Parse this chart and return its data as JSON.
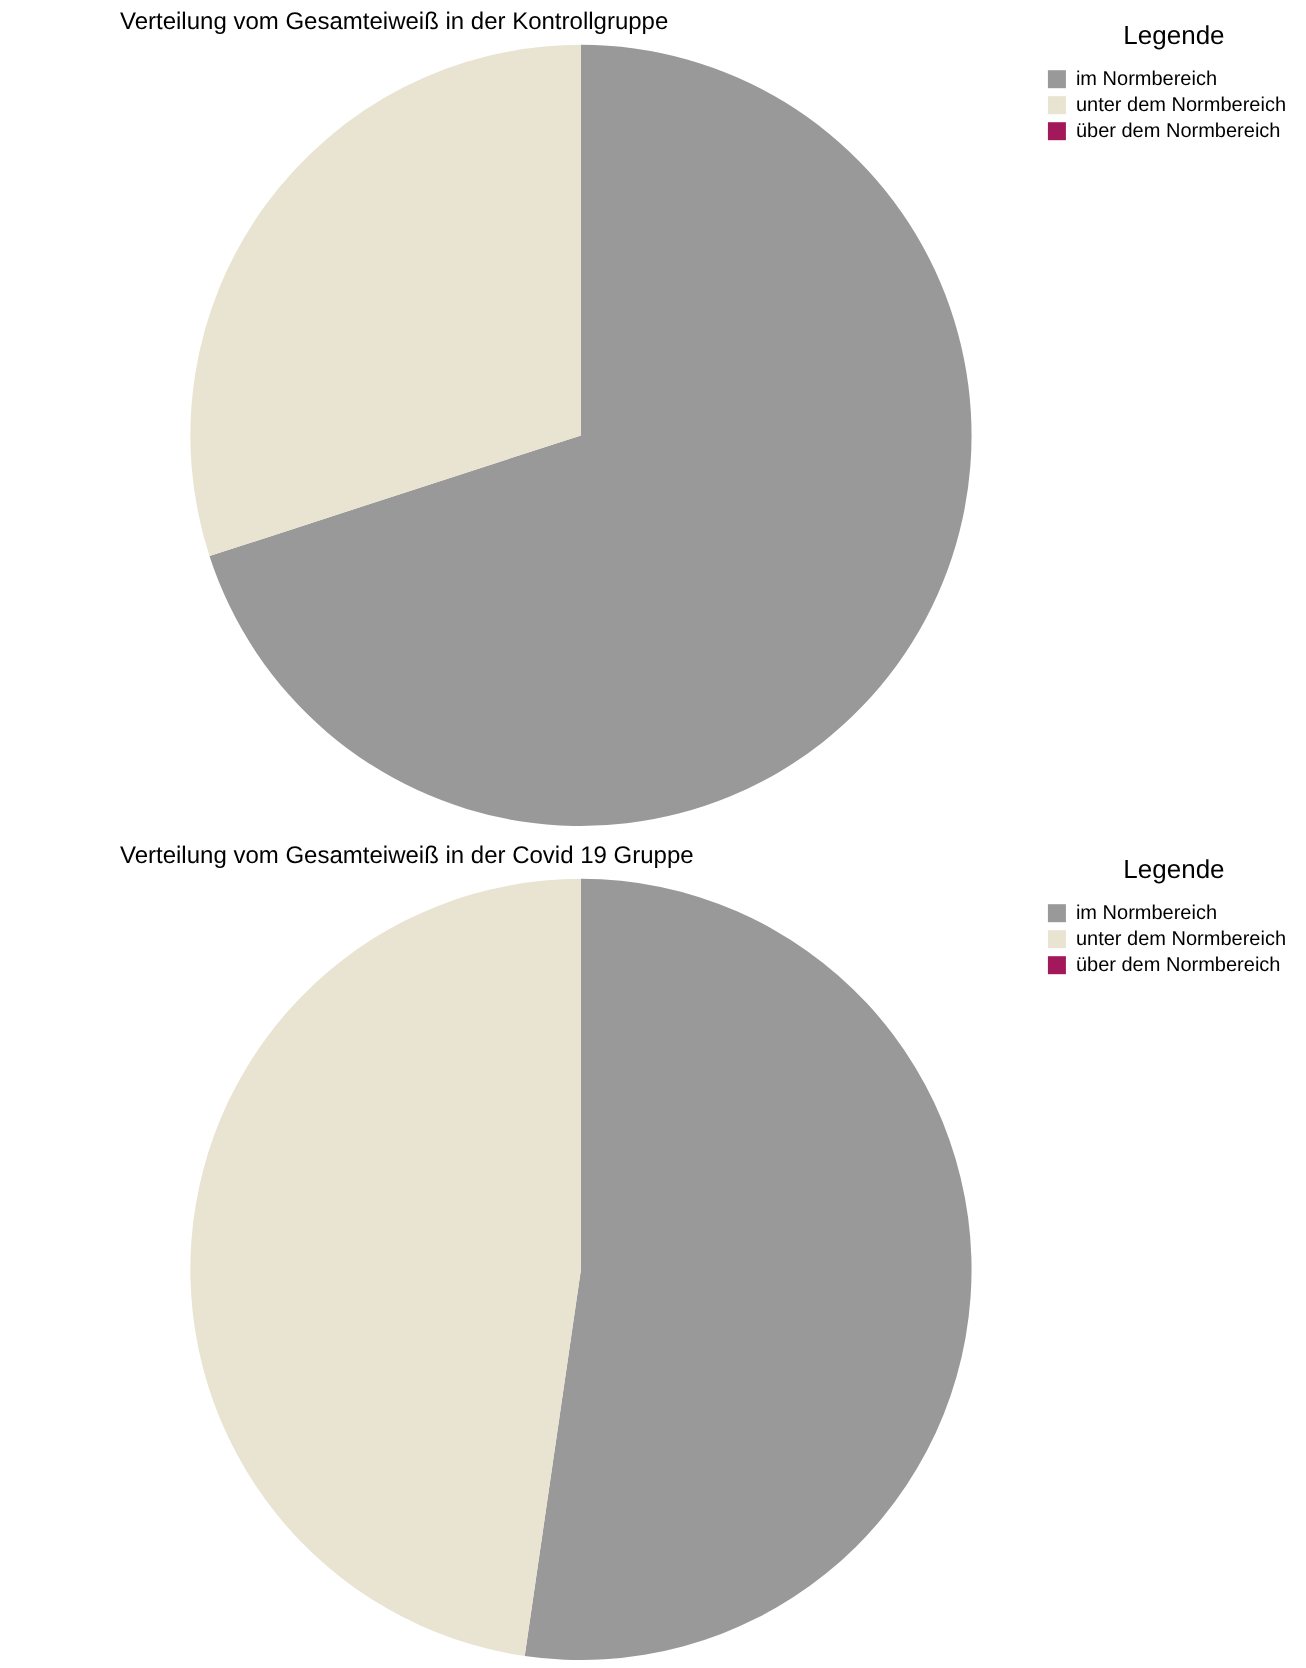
{
  "chart_data": [
    {
      "type": "pie",
      "title": "Verteilung vom Gesamteiweiß in der Kontrollgruppe",
      "legend_title": "Legende",
      "legend": "top right",
      "categories": [
        "im Normbereich",
        "unter dem Normbereich",
        "über dem Normbereich"
      ],
      "values": [
        70,
        30,
        0
      ],
      "colors": [
        "#999999",
        "#e9e3d1",
        "#a3185a"
      ]
    },
    {
      "type": "pie",
      "title": "Verteilung vom Gesamteiweiß in der Covid 19 Gruppe",
      "legend_title": "Legende",
      "legend": "top right",
      "categories": [
        "im Normbereich",
        "unter dem Normbereich",
        "über dem Normbereich"
      ],
      "values": [
        52.3,
        47.7,
        0
      ],
      "colors": [
        "#999999",
        "#e9e3d1",
        "#a3185a"
      ]
    }
  ]
}
